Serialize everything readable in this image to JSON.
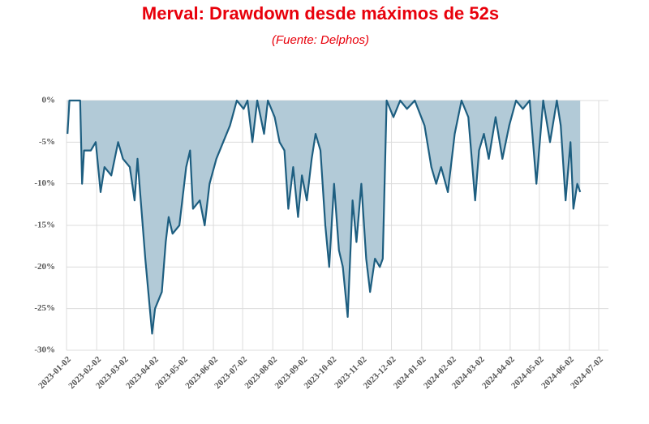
{
  "chart_data": {
    "type": "area",
    "title": "Merval: Drawdown desde máximos de 52s",
    "subtitle": "(Fuente: Delphos)",
    "line_color": "#1d5e80",
    "fill_color": "#b2cad7",
    "grid": true,
    "x": [
      "2023-01-03",
      "2023-01-05",
      "2023-01-16",
      "2023-01-18",
      "2023-01-20",
      "2023-01-27",
      "2023-02-01",
      "2023-02-06",
      "2023-02-10",
      "2023-02-17",
      "2023-02-24",
      "2023-03-01",
      "2023-03-08",
      "2023-03-13",
      "2023-03-16",
      "2023-03-20",
      "2023-03-24",
      "2023-03-31",
      "2023-04-03",
      "2023-04-10",
      "2023-04-14",
      "2023-04-17",
      "2023-04-21",
      "2023-04-28",
      "2023-05-05",
      "2023-05-09",
      "2023-05-12",
      "2023-05-19",
      "2023-05-24",
      "2023-05-29",
      "2023-06-05",
      "2023-06-12",
      "2023-06-19",
      "2023-06-26",
      "2023-07-03",
      "2023-07-07",
      "2023-07-12",
      "2023-07-17",
      "2023-07-24",
      "2023-07-28",
      "2023-08-04",
      "2023-08-09",
      "2023-08-14",
      "2023-08-18",
      "2023-08-23",
      "2023-08-28",
      "2023-09-01",
      "2023-09-06",
      "2023-09-11",
      "2023-09-15",
      "2023-09-20",
      "2023-09-25",
      "2023-09-29",
      "2023-10-04",
      "2023-10-09",
      "2023-10-13",
      "2023-10-18",
      "2023-10-23",
      "2023-10-27",
      "2023-11-01",
      "2023-11-06",
      "2023-11-10",
      "2023-11-15",
      "2023-11-20",
      "2023-11-23",
      "2023-11-27",
      "2023-12-04",
      "2023-12-11",
      "2023-12-18",
      "2023-12-26",
      "2024-01-05",
      "2024-01-12",
      "2024-01-17",
      "2024-01-22",
      "2024-01-29",
      "2024-02-05",
      "2024-02-12",
      "2024-02-19",
      "2024-02-26",
      "2024-03-01",
      "2024-03-06",
      "2024-03-11",
      "2024-03-18",
      "2024-03-25",
      "2024-04-01",
      "2024-04-08",
      "2024-04-15",
      "2024-04-22",
      "2024-04-29",
      "2024-05-06",
      "2024-05-13",
      "2024-05-20",
      "2024-05-24",
      "2024-05-29",
      "2024-06-03",
      "2024-06-06",
      "2024-06-10",
      "2024-06-13"
    ],
    "values": [
      -4,
      0,
      0,
      -10,
      -6,
      -6,
      -5,
      -11,
      -8,
      -9,
      -5,
      -7,
      -8,
      -12,
      -7,
      -13,
      -19,
      -28,
      -25,
      -23,
      -17,
      -14,
      -16,
      -15,
      -8,
      -6,
      -13,
      -12,
      -15,
      -10,
      -7,
      -5,
      -3,
      0,
      -1,
      0,
      -5,
      0,
      -4,
      0,
      -2,
      -5,
      -6,
      -13,
      -8,
      -14,
      -9,
      -12,
      -7,
      -4,
      -6,
      -15,
      -20,
      -10,
      -18,
      -20,
      -26,
      -12,
      -17,
      -10,
      -19,
      -23,
      -19,
      -20,
      -19,
      0,
      -2,
      0,
      -1,
      0,
      -3,
      -8,
      -10,
      -8,
      -11,
      -4,
      0,
      -2,
      -12,
      -6,
      -4,
      -7,
      -2,
      -7,
      -3,
      0,
      -1,
      0,
      -10,
      0,
      -5,
      0,
      -3,
      -12,
      -5,
      -13,
      -10,
      -11
    ],
    "xlim": [
      "2023-01-02",
      "2024-07-02"
    ],
    "xticks": [
      "2023-01-02",
      "2023-02-02",
      "2023-03-02",
      "2023-04-02",
      "2023-05-02",
      "2023-06-02",
      "2023-07-02",
      "2023-08-02",
      "2023-09-02",
      "2023-10-02",
      "2023-11-02",
      "2023-12-02",
      "2024-01-02",
      "2024-02-02",
      "2024-03-02",
      "2024-04-02",
      "2024-05-02",
      "2024-06-02",
      "2024-07-02"
    ],
    "ylim": [
      -30,
      0
    ],
    "yticks": [
      {
        "value": 0,
        "label": "0%"
      },
      {
        "value": -5,
        "label": "-5%"
      },
      {
        "value": -10,
        "label": "-10%"
      },
      {
        "value": -15,
        "label": "-15%"
      },
      {
        "value": -20,
        "label": "-20%"
      },
      {
        "value": -25,
        "label": "-25%"
      },
      {
        "value": -30,
        "label": "-30%"
      }
    ]
  }
}
